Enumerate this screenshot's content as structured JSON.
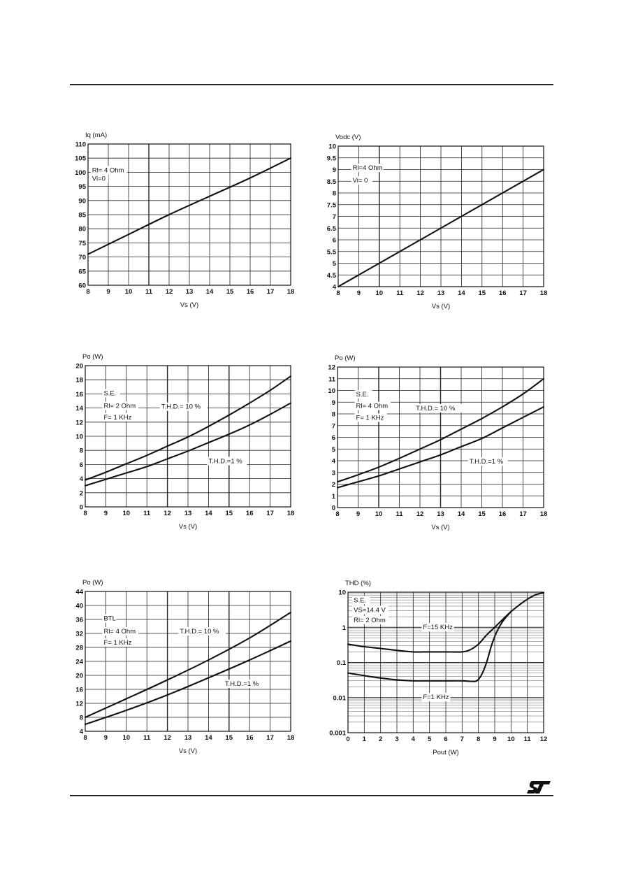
{
  "page": {
    "logo_text": "ST",
    "accent_color": "#222222"
  },
  "chart_data": [
    {
      "id": "iq-vs-vs",
      "type": "line",
      "ylabel": "Iq (mA)",
      "xlabel": "Vs (V)",
      "xlim": [
        8,
        18
      ],
      "ylim": [
        60,
        110
      ],
      "xticks": [
        "8",
        "9",
        "10",
        "11",
        "12",
        "13",
        "14",
        "15",
        "16",
        "17",
        "18"
      ],
      "yticks": [
        "60",
        "65",
        "70",
        "75",
        "80",
        "85",
        "90",
        "95",
        "100",
        "105",
        "110"
      ],
      "yscale": "linear",
      "grid": true,
      "annotations": [
        {
          "text": "Rl= 4 Ohm",
          "x": 8.2,
          "y": 100
        },
        {
          "text": "Vi=0",
          "x": 8.2,
          "y": 97
        }
      ],
      "series": [
        {
          "name": "Iq",
          "x": [
            8,
            10,
            12,
            14,
            16,
            18
          ],
          "y": [
            71,
            78,
            85,
            91.5,
            98,
            105
          ]
        }
      ]
    },
    {
      "id": "vodc-vs-vs",
      "type": "line",
      "ylabel": "Vodc (V)",
      "xlabel": "Vs (V)",
      "xlim": [
        8,
        18
      ],
      "ylim": [
        4,
        10
      ],
      "xticks": [
        "8",
        "9",
        "10",
        "11",
        "12",
        "13",
        "14",
        "15",
        "16",
        "17",
        "18"
      ],
      "yticks": [
        "4",
        "4.5",
        "5",
        "5.5",
        "6",
        "6.5",
        "7",
        "7.5",
        "8",
        "8.5",
        "9",
        "9.5",
        "10"
      ],
      "yscale": "linear",
      "grid": true,
      "annotations": [
        {
          "text": "Rl=4 Ohm",
          "x": 8.7,
          "y": 8.98
        },
        {
          "text": "Vi= 0",
          "x": 8.7,
          "y": 8.45
        }
      ],
      "series": [
        {
          "name": "Vodc",
          "x": [
            8,
            18
          ],
          "y": [
            4,
            9
          ]
        }
      ]
    },
    {
      "id": "po-se-2ohm",
      "type": "line",
      "ylabel": "Po (W)",
      "xlabel": "Vs (V)",
      "xlim": [
        8,
        18
      ],
      "ylim": [
        0,
        20
      ],
      "xticks": [
        "8",
        "9",
        "10",
        "11",
        "12",
        "13",
        "14",
        "15",
        "16",
        "17",
        "18"
      ],
      "yticks": [
        "0",
        "2",
        "4",
        "6",
        "8",
        "10",
        "12",
        "14",
        "16",
        "18",
        "20"
      ],
      "yscale": "linear",
      "grid": true,
      "annotations": [
        {
          "text": "S.E.",
          "x": 8.9,
          "y": 15.8
        },
        {
          "text": "Rl= 2 Ohm",
          "x": 8.9,
          "y": 14
        },
        {
          "text": "F= 1 KHz",
          "x": 8.9,
          "y": 12.4
        },
        {
          "text": "T.H.D.= 10 %",
          "x": 11.7,
          "y": 13.9
        },
        {
          "text": "T.H.D.=1 %",
          "x": 14,
          "y": 6.2
        }
      ],
      "series": [
        {
          "name": "T.H.D.= 10 %",
          "x": [
            8,
            9,
            10,
            11,
            12,
            13,
            14,
            15,
            16,
            17,
            18
          ],
          "y": [
            3.8,
            4.9,
            6.1,
            7.3,
            8.6,
            9.9,
            11.4,
            13.0,
            14.7,
            16.5,
            18.5
          ]
        },
        {
          "name": "T.H.D.=1 %",
          "x": [
            8,
            9,
            10,
            11,
            12,
            13,
            14,
            15,
            16,
            17,
            18
          ],
          "y": [
            3.0,
            3.9,
            4.8,
            5.7,
            6.8,
            7.9,
            9.1,
            10.3,
            11.6,
            13.1,
            14.7
          ]
        }
      ]
    },
    {
      "id": "po-se-4ohm",
      "type": "line",
      "ylabel": "Po (W)",
      "xlabel": "Vs (V)",
      "xlim": [
        8,
        18
      ],
      "ylim": [
        0,
        12
      ],
      "xticks": [
        "8",
        "9",
        "10",
        "11",
        "12",
        "13",
        "14",
        "15",
        "16",
        "17",
        "18"
      ],
      "yticks": [
        "0",
        "1",
        "2",
        "3",
        "4",
        "5",
        "6",
        "7",
        "8",
        "9",
        "10",
        "11",
        "12"
      ],
      "yscale": "linear",
      "grid": true,
      "annotations": [
        {
          "text": "S.E.",
          "x": 8.9,
          "y": 9.5
        },
        {
          "text": "Rl= 4 Ohm",
          "x": 8.9,
          "y": 8.5
        },
        {
          "text": "F= 1 KHz",
          "x": 8.9,
          "y": 7.5
        },
        {
          "text": "T.H.D.= 10 %",
          "x": 11.8,
          "y": 8.3
        },
        {
          "text": "T.H.D.=1 %",
          "x": 14.4,
          "y": 3.75
        }
      ],
      "series": [
        {
          "name": "T.H.D.= 10 %",
          "x": [
            8,
            9,
            10,
            11,
            12,
            13,
            14,
            15,
            16,
            17,
            18
          ],
          "y": [
            2.2,
            2.8,
            3.45,
            4.2,
            5.0,
            5.8,
            6.7,
            7.6,
            8.6,
            9.7,
            11.0
          ]
        },
        {
          "name": "T.H.D.=1 %",
          "x": [
            8,
            9,
            10,
            11,
            12,
            13,
            14,
            15,
            16,
            17,
            18
          ],
          "y": [
            1.7,
            2.2,
            2.7,
            3.3,
            3.9,
            4.5,
            5.2,
            5.9,
            6.8,
            7.7,
            8.6
          ]
        }
      ]
    },
    {
      "id": "po-btl-4ohm",
      "type": "line",
      "ylabel": "Po (W)",
      "xlabel": "Vs (V)",
      "xlim": [
        8,
        18
      ],
      "ylim": [
        4,
        44
      ],
      "xticks": [
        "8",
        "9",
        "10",
        "11",
        "12",
        "13",
        "14",
        "15",
        "16",
        "17",
        "18"
      ],
      "yticks": [
        "4",
        "8",
        "12",
        "16",
        "20",
        "24",
        "28",
        "32",
        "36",
        "40",
        "44"
      ],
      "yscale": "linear",
      "grid": true,
      "annotations": [
        {
          "text": "BTL",
          "x": 8.9,
          "y": 35.7
        },
        {
          "text": "Rl= 4 Ohm",
          "x": 8.9,
          "y": 32
        },
        {
          "text": "F= 1 KHz",
          "x": 8.9,
          "y": 28.8
        },
        {
          "text": "T.H.D.= 10 %",
          "x": 12.6,
          "y": 32
        },
        {
          "text": "T.H.D.=1 %",
          "x": 14.8,
          "y": 17
        }
      ],
      "series": [
        {
          "name": "T.H.D.= 10 %",
          "x": [
            8,
            10,
            12,
            14,
            16,
            18
          ],
          "y": [
            8,
            13.3,
            18.7,
            24.4,
            30.7,
            38.0
          ]
        },
        {
          "name": "T.H.D.=1 %",
          "x": [
            8,
            10,
            12,
            14,
            16,
            18
          ],
          "y": [
            6,
            10.0,
            14.4,
            19.3,
            24.4,
            29.8
          ]
        }
      ]
    },
    {
      "id": "thd-vs-pout",
      "type": "line",
      "ylabel": "THD (%)",
      "xlabel": "Pout (W)",
      "xlim": [
        0,
        12
      ],
      "ylim": [
        0.001,
        10
      ],
      "yscale": "log",
      "xticks": [
        "0",
        "1",
        "2",
        "3",
        "4",
        "5",
        "6",
        "7",
        "8",
        "9",
        "10",
        "11",
        "12"
      ],
      "yticks": [
        "0.001",
        "0.01",
        "0.1",
        "1",
        "10"
      ],
      "grid": true,
      "annotations": [
        {
          "text": "S.E.",
          "x": 0.35,
          "y": 5.2
        },
        {
          "text": "VS=14.4 V",
          "x": 0.35,
          "y": 2.7
        },
        {
          "text": "Rl= 2 Ohm",
          "x": 0.35,
          "y": 1.4
        },
        {
          "text": "F=15 KHz",
          "x": 4.6,
          "y": 0.88
        },
        {
          "text": "F=1 KHz",
          "x": 4.6,
          "y": 0.009
        }
      ],
      "series": [
        {
          "name": "F=15 KHz",
          "x": [
            0,
            1,
            2,
            3,
            4,
            5,
            6,
            7,
            7.5,
            8,
            8.5,
            9,
            9.5,
            10,
            10.5,
            11,
            11.5,
            12
          ],
          "y": [
            0.33,
            0.28,
            0.25,
            0.22,
            0.2,
            0.2,
            0.2,
            0.2,
            0.23,
            0.33,
            0.6,
            1.0,
            1.7,
            2.8,
            4.3,
            6.3,
            8.4,
            9.7
          ]
        },
        {
          "name": "F=1 KHz",
          "x": [
            0,
            1,
            2,
            3,
            4,
            5,
            6,
            7,
            7.5,
            7.9,
            8.2,
            8.5,
            8.8,
            9.1,
            9.5,
            10
          ],
          "y": [
            0.05,
            0.042,
            0.036,
            0.032,
            0.03,
            0.03,
            0.03,
            0.03,
            0.029,
            0.03,
            0.045,
            0.1,
            0.3,
            0.7,
            1.5,
            2.8
          ]
        }
      ]
    }
  ]
}
